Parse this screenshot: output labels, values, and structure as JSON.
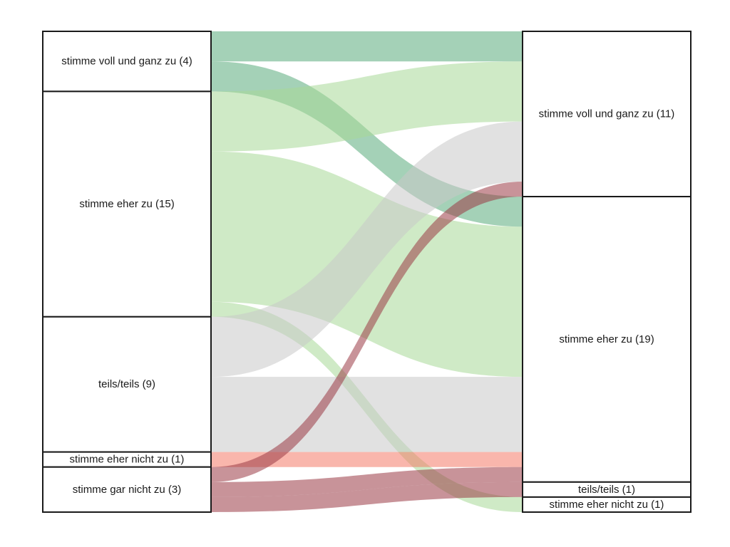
{
  "chart_data": {
    "type": "alluvial",
    "colors": {
      "stimme voll und ganz zu": "#5aab7b",
      "stimme eher zu": "#a8d898",
      "teils/teils": "#c8c8c8",
      "stimme eher nicht zu": "#f47a68",
      "stimme gar nicht zu": "#9a3a46"
    },
    "left_axis": [
      {
        "id": "L_vvg",
        "category": "stimme voll und ganz zu",
        "label": "stimme voll und ganz zu (4)",
        "count": 4
      },
      {
        "id": "L_ez",
        "category": "stimme eher zu",
        "label": "stimme eher zu (15)",
        "count": 15
      },
      {
        "id": "L_tt",
        "category": "teils/teils",
        "label": "teils/teils (9)",
        "count": 9
      },
      {
        "id": "L_enz",
        "category": "stimme eher nicht zu",
        "label": "stimme eher nicht zu (1)",
        "count": 1
      },
      {
        "id": "L_gnz",
        "category": "stimme gar nicht zu",
        "label": "stimme gar nicht zu (3)",
        "count": 3
      }
    ],
    "right_axis": [
      {
        "id": "R_vvg",
        "category": "stimme voll und ganz zu",
        "label": "stimme voll und ganz zu (11)",
        "count": 11
      },
      {
        "id": "R_ez",
        "category": "stimme eher zu",
        "label": "stimme eher zu (19)",
        "count": 19
      },
      {
        "id": "R_tt",
        "category": "teils/teils",
        "label": "teils/teils (1)",
        "count": 1
      },
      {
        "id": "R_enz",
        "category": "stimme eher nicht zu",
        "label": "stimme eher nicht zu (1)",
        "count": 1
      }
    ],
    "flows": [
      {
        "from": "L_vvg",
        "to": "R_vvg",
        "value": 2,
        "color_of": "stimme voll und ganz zu"
      },
      {
        "from": "L_vvg",
        "to": "R_ez",
        "value": 2,
        "color_of": "stimme voll und ganz zu"
      },
      {
        "from": "L_ez",
        "to": "R_vvg",
        "value": 4,
        "color_of": "stimme eher zu"
      },
      {
        "from": "L_ez",
        "to": "R_ez",
        "value": 10,
        "color_of": "stimme eher zu"
      },
      {
        "from": "L_ez",
        "to": "R_enz",
        "value": 1,
        "color_of": "stimme eher zu"
      },
      {
        "from": "L_tt",
        "to": "R_vvg",
        "value": 4,
        "color_of": "teils/teils"
      },
      {
        "from": "L_tt",
        "to": "R_ez",
        "value": 5,
        "color_of": "teils/teils"
      },
      {
        "from": "L_enz",
        "to": "R_ez",
        "value": 1,
        "color_of": "stimme eher nicht zu"
      },
      {
        "from": "L_gnz",
        "to": "R_vvg",
        "value": 1,
        "color_of": "stimme gar nicht zu"
      },
      {
        "from": "L_gnz",
        "to": "R_ez",
        "value": 1,
        "color_of": "stimme gar nicht zu"
      },
      {
        "from": "L_gnz",
        "to": "R_tt",
        "value": 1,
        "color_of": "stimme gar nicht zu"
      }
    ]
  }
}
